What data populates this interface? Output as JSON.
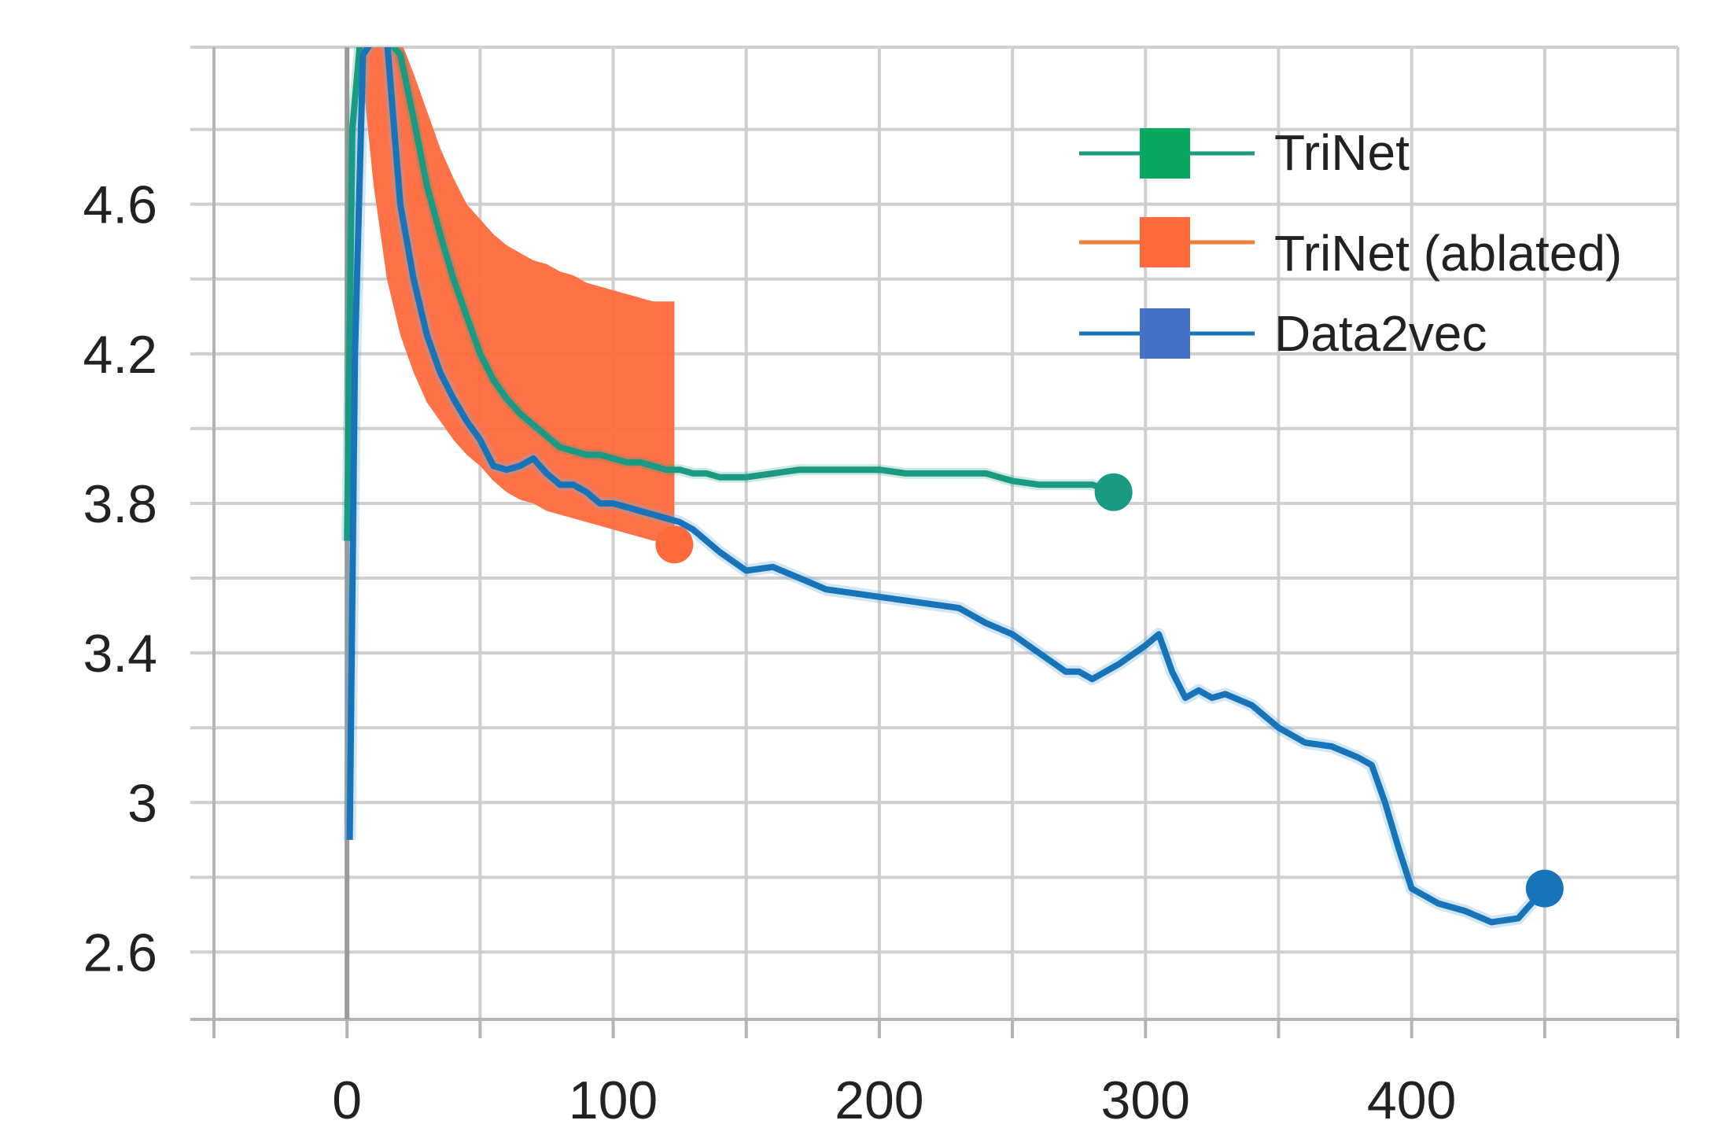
{
  "chart_data": {
    "type": "line",
    "title": "",
    "xlabel": "",
    "ylabel": "",
    "xlim": [
      -50,
      500
    ],
    "ylim": [
      2.42,
      5.02
    ],
    "x_ticks": [
      0,
      100,
      200,
      300,
      400
    ],
    "x_tick_labels": [
      "0",
      "100",
      "200",
      "300",
      "400"
    ],
    "y_ticks": [
      2.6,
      3,
      3.4,
      3.8,
      4.2,
      4.6
    ],
    "y_tick_labels": [
      "2.6",
      "3",
      "3.4",
      "3.8",
      "4.2",
      "4.6"
    ],
    "grid": true,
    "legend_position": "top-right",
    "series": [
      {
        "name": "TriNet",
        "color": "#1a9a82",
        "marker_color": "#0aa85e",
        "x": [
          0,
          2,
          5,
          10,
          15,
          20,
          25,
          30,
          35,
          40,
          45,
          50,
          55,
          60,
          65,
          70,
          75,
          80,
          85,
          90,
          95,
          100,
          105,
          110,
          115,
          120,
          125,
          130,
          135,
          140,
          150,
          160,
          170,
          180,
          190,
          200,
          210,
          220,
          230,
          240,
          250,
          260,
          270,
          280,
          288
        ],
        "y": [
          3.7,
          4.8,
          5.1,
          5.3,
          5.25,
          5.0,
          4.83,
          4.65,
          4.52,
          4.4,
          4.3,
          4.2,
          4.13,
          4.08,
          4.04,
          4.01,
          3.98,
          3.95,
          3.94,
          3.93,
          3.93,
          3.92,
          3.91,
          3.91,
          3.9,
          3.89,
          3.89,
          3.88,
          3.88,
          3.87,
          3.87,
          3.88,
          3.89,
          3.89,
          3.89,
          3.89,
          3.88,
          3.88,
          3.88,
          3.88,
          3.86,
          3.85,
          3.85,
          3.85,
          3.83
        ]
      },
      {
        "name": "TriNet (ablated)",
        "color": "#ff6a3d",
        "marker_color": "#ff6a3d",
        "x": [
          5,
          10,
          15,
          20,
          25,
          30,
          35,
          40,
          45,
          50,
          55,
          60,
          65,
          70,
          75,
          80,
          85,
          90,
          95,
          100,
          105,
          110,
          115,
          120,
          123
        ],
        "y_low": [
          5.0,
          4.65,
          4.4,
          4.25,
          4.15,
          4.07,
          4.02,
          3.97,
          3.93,
          3.9,
          3.86,
          3.83,
          3.81,
          3.8,
          3.78,
          3.77,
          3.76,
          3.75,
          3.74,
          3.73,
          3.72,
          3.71,
          3.7,
          3.7,
          3.7
        ],
        "y_high": [
          5.1,
          5.1,
          5.1,
          5.05,
          4.95,
          4.85,
          4.75,
          4.67,
          4.6,
          4.56,
          4.52,
          4.49,
          4.47,
          4.45,
          4.44,
          4.42,
          4.41,
          4.39,
          4.38,
          4.37,
          4.36,
          4.35,
          4.34,
          4.34,
          4.34
        ],
        "final_value": 3.69
      },
      {
        "name": "Data2vec",
        "color": "#1874b9",
        "marker_color": "#4572c4",
        "x": [
          1,
          3,
          6,
          10,
          15,
          20,
          25,
          30,
          35,
          40,
          45,
          50,
          55,
          60,
          65,
          70,
          75,
          80,
          85,
          90,
          95,
          100,
          105,
          110,
          115,
          120,
          125,
          130,
          140,
          150,
          160,
          170,
          180,
          190,
          200,
          210,
          220,
          230,
          240,
          250,
          260,
          270,
          275,
          280,
          285,
          290,
          300,
          305,
          310,
          315,
          320,
          325,
          330,
          340,
          350,
          360,
          370,
          380,
          385,
          390,
          395,
          400,
          410,
          420,
          430,
          440,
          450
        ],
        "y": [
          2.9,
          4.2,
          5.0,
          5.3,
          5.1,
          4.6,
          4.4,
          4.25,
          4.15,
          4.08,
          4.02,
          3.97,
          3.9,
          3.89,
          3.9,
          3.92,
          3.88,
          3.85,
          3.85,
          3.83,
          3.8,
          3.8,
          3.79,
          3.78,
          3.77,
          3.76,
          3.75,
          3.73,
          3.67,
          3.62,
          3.63,
          3.6,
          3.57,
          3.56,
          3.55,
          3.54,
          3.53,
          3.52,
          3.48,
          3.45,
          3.4,
          3.35,
          3.35,
          3.33,
          3.35,
          3.37,
          3.42,
          3.45,
          3.35,
          3.28,
          3.3,
          3.28,
          3.29,
          3.26,
          3.2,
          3.16,
          3.15,
          3.12,
          3.1,
          3.0,
          2.88,
          2.77,
          2.73,
          2.71,
          2.68,
          2.69,
          2.77
        ]
      }
    ]
  }
}
